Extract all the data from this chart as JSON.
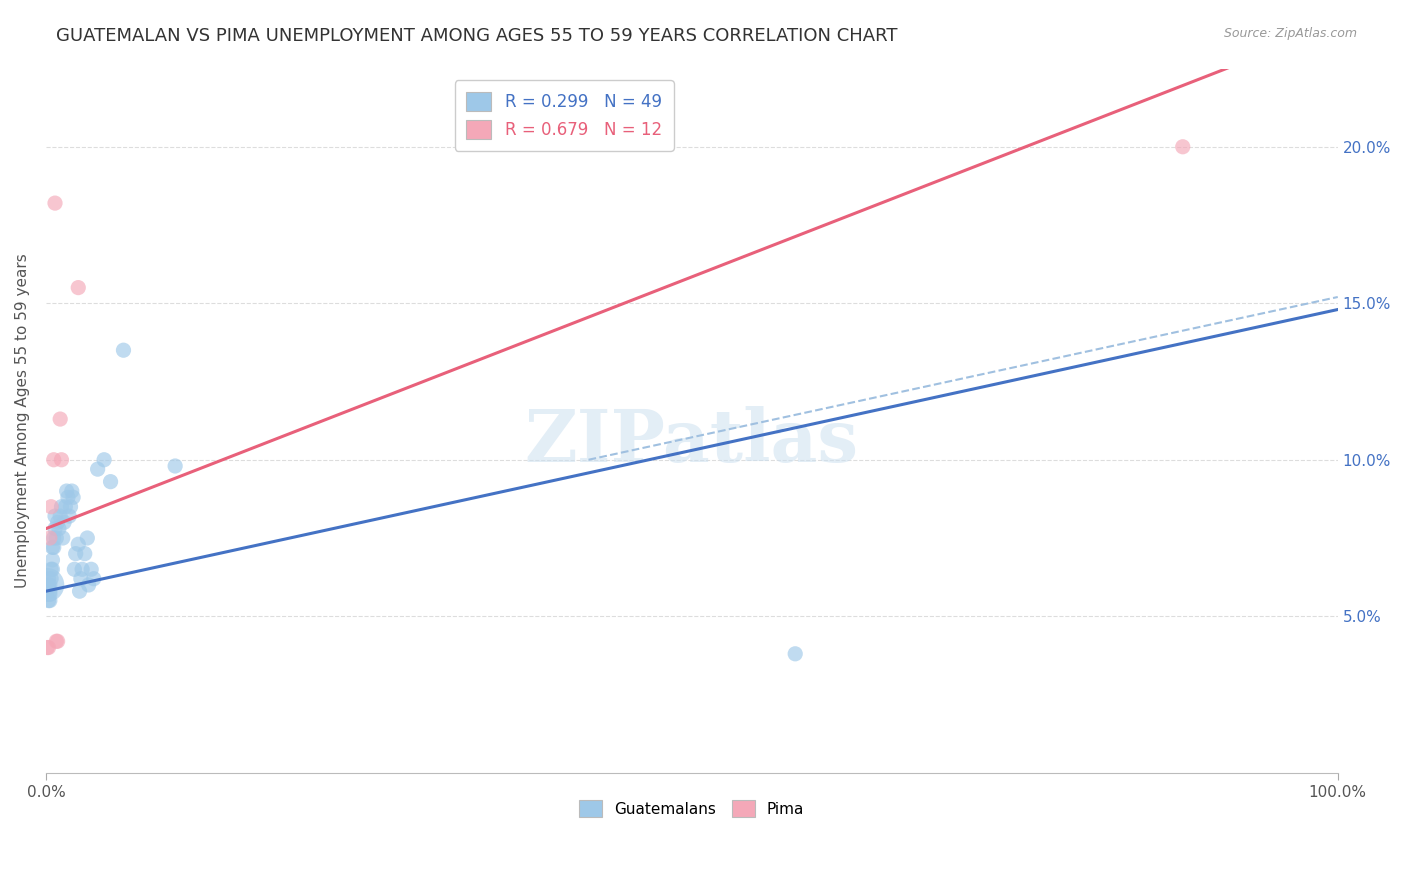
{
  "title": "GUATEMALAN VS PIMA UNEMPLOYMENT AMONG AGES 55 TO 59 YEARS CORRELATION CHART",
  "source": "Source: ZipAtlas.com",
  "ylabel": "Unemployment Among Ages 55 to 59 years",
  "xlim": [
    0,
    1.0
  ],
  "ylim": [
    0,
    0.225
  ],
  "xtick_positions": [
    0.0,
    1.0
  ],
  "xticklabels": [
    "0.0%",
    "100.0%"
  ],
  "ytick_positions": [
    0.05,
    0.1,
    0.15,
    0.2
  ],
  "yticklabels": [
    "5.0%",
    "10.0%",
    "15.0%",
    "20.0%"
  ],
  "blue_color": "#9EC8E8",
  "pink_color": "#F4A8B8",
  "blue_line_color": "#4472C4",
  "pink_line_color": "#E8607A",
  "dashed_line_color": "#A0C0E0",
  "watermark": "ZIPatlas",
  "blue_scatter_x": [
    0.001,
    0.001,
    0.002,
    0.002,
    0.002,
    0.003,
    0.003,
    0.003,
    0.003,
    0.004,
    0.004,
    0.005,
    0.005,
    0.005,
    0.006,
    0.006,
    0.007,
    0.007,
    0.008,
    0.009,
    0.01,
    0.011,
    0.012,
    0.013,
    0.014,
    0.015,
    0.016,
    0.017,
    0.018,
    0.019,
    0.02,
    0.021,
    0.022,
    0.023,
    0.025,
    0.026,
    0.027,
    0.028,
    0.03,
    0.032,
    0.033,
    0.035,
    0.037,
    0.04,
    0.045,
    0.05,
    0.06,
    0.1,
    0.58
  ],
  "blue_scatter_y": [
    0.06,
    0.058,
    0.055,
    0.06,
    0.062,
    0.058,
    0.06,
    0.055,
    0.057,
    0.062,
    0.065,
    0.068,
    0.072,
    0.065,
    0.075,
    0.072,
    0.078,
    0.082,
    0.075,
    0.08,
    0.078,
    0.082,
    0.085,
    0.075,
    0.08,
    0.085,
    0.09,
    0.088,
    0.082,
    0.085,
    0.09,
    0.088,
    0.065,
    0.07,
    0.073,
    0.058,
    0.062,
    0.065,
    0.07,
    0.075,
    0.06,
    0.065,
    0.062,
    0.097,
    0.1,
    0.093,
    0.135,
    0.098,
    0.038
  ],
  "pink_scatter_x": [
    0.001,
    0.002,
    0.003,
    0.004,
    0.006,
    0.007,
    0.008,
    0.009,
    0.011,
    0.012,
    0.025,
    0.88
  ],
  "pink_scatter_y": [
    0.04,
    0.04,
    0.075,
    0.085,
    0.1,
    0.182,
    0.042,
    0.042,
    0.113,
    0.1,
    0.155,
    0.2
  ],
  "blue_line_x0": 0.0,
  "blue_line_x1": 1.0,
  "blue_line_y0": 0.058,
  "blue_line_y1": 0.148,
  "pink_line_x0": 0.0,
  "pink_line_x1": 0.92,
  "pink_line_y0": 0.078,
  "pink_line_y1": 0.226,
  "dashed_line_x0": 0.42,
  "dashed_line_x1": 1.0,
  "dashed_line_y0": 0.1,
  "dashed_line_y1": 0.152,
  "background_color": "#FFFFFF",
  "grid_color": "#DDDDDD"
}
